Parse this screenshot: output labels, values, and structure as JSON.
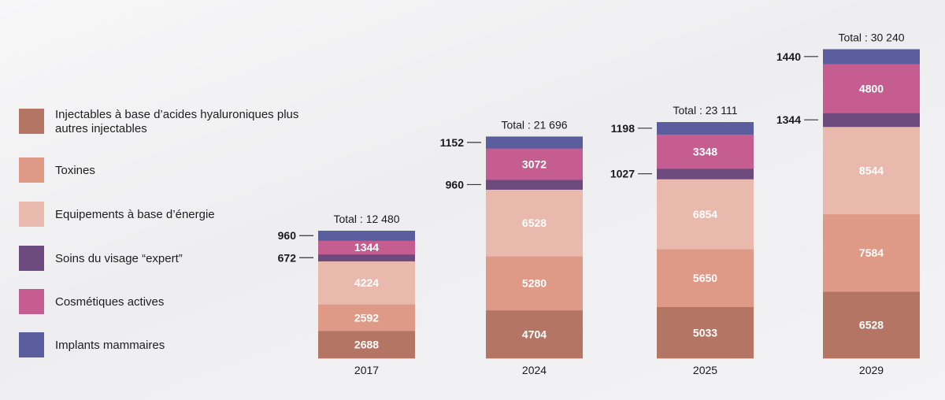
{
  "colors": {
    "injectables": "#b57565",
    "toxines": "#de9a86",
    "equipements": "#e9b9ad",
    "soins": "#6c4a7d",
    "cosmetiques": "#c65d91",
    "implants": "#5a5d9e"
  },
  "legend": [
    {
      "key": "injectables",
      "label": "Injectables à base d’acides hyaluroniques plus autres injectables"
    },
    {
      "key": "toxines",
      "label": "Toxines"
    },
    {
      "key": "equipements",
      "label": "Equipements à base d’énergie"
    },
    {
      "key": "soins",
      "label": "Soins du visage “expert”"
    },
    {
      "key": "cosmetiques",
      "label": "Cosmétiques actives"
    },
    {
      "key": "implants",
      "label": "Implants mammaires"
    }
  ],
  "chart_data": {
    "type": "bar",
    "stacked": true,
    "legend_position": "left",
    "grid": false,
    "categories": [
      "2017",
      "2024",
      "2025",
      "2029"
    ],
    "totals": [
      "Total : 12 480",
      "Total : 21 696",
      "Total : 23 111",
      "Total : 30 240"
    ],
    "series": [
      {
        "key": "injectables",
        "name": "Injectables à base d’acides hyaluroniques plus autres injectables",
        "values": [
          2688,
          4704,
          5033,
          6528
        ]
      },
      {
        "key": "toxines",
        "name": "Toxines",
        "values": [
          2592,
          5280,
          5650,
          7584
        ]
      },
      {
        "key": "equipements",
        "name": "Equipements à base d’énergie",
        "values": [
          4224,
          6528,
          6854,
          8544
        ]
      },
      {
        "key": "soins",
        "name": "Soins du visage “expert”",
        "values": [
          672,
          960,
          1027,
          1344
        ]
      },
      {
        "key": "cosmetiques",
        "name": "Cosmétiques actives",
        "values": [
          1344,
          3072,
          3348,
          4800
        ]
      },
      {
        "key": "implants",
        "name": "Implants mammaires",
        "values": [
          960,
          1152,
          1198,
          1440
        ]
      }
    ]
  }
}
